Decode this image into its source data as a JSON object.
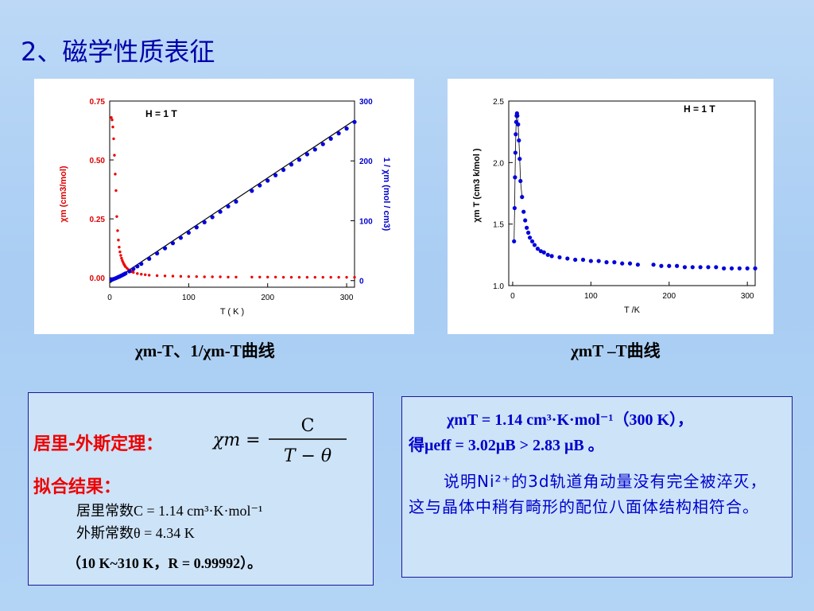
{
  "page": {
    "title": "2、磁学性质表征"
  },
  "chart_data": [
    {
      "type": "scatter",
      "title": "",
      "annotation": "H = 1 T",
      "xlabel": "T ( K )",
      "x_ticks": [
        "0",
        "100",
        "200",
        "300"
      ],
      "xlim": [
        0,
        310
      ],
      "left_axis": {
        "label": "χm (cm3/mol)",
        "ticks": [
          "0.00",
          "0.25",
          "0.50",
          "0.75"
        ],
        "ylim": [
          -0.04,
          0.75
        ],
        "color": "#dd0000"
      },
      "right_axis": {
        "label": "1 / χm (mol / cm3)",
        "ticks": [
          "0",
          "100",
          "200",
          "300"
        ],
        "ylim": [
          -11,
          300
        ],
        "color": "#0000cc"
      },
      "series": [
        {
          "axis": "left",
          "color": "#ee0000",
          "x": [
            2,
            3,
            4,
            5,
            6,
            7,
            8,
            9,
            10,
            11,
            12,
            13,
            14,
            15,
            16,
            17,
            18,
            19,
            20,
            22,
            24,
            26,
            28,
            30,
            35,
            40,
            45,
            50,
            60,
            70,
            80,
            90,
            100,
            110,
            120,
            130,
            140,
            150,
            160,
            180,
            190,
            200,
            210,
            220,
            230,
            240,
            250,
            260,
            270,
            280,
            290,
            300,
            310
          ],
          "y": [
            0.68,
            0.67,
            0.64,
            0.59,
            0.52,
            0.44,
            0.37,
            0.26,
            0.2,
            0.16,
            0.13,
            0.11,
            0.095,
            0.083,
            0.073,
            0.065,
            0.058,
            0.052,
            0.047,
            0.04,
            0.034,
            0.03,
            0.026,
            0.023,
            0.018,
            0.015,
            0.013,
            0.011,
            0.009,
            0.008,
            0.007,
            0.006,
            0.005,
            0.005,
            0.004,
            0.004,
            0.004,
            0.003,
            0.003,
            0.003,
            0.003,
            0.003,
            0.003,
            0.002,
            0.002,
            0.002,
            0.002,
            0.002,
            0.002,
            0.002,
            0.002,
            0.002,
            0.002
          ]
        },
        {
          "axis": "right",
          "color": "#0000dd",
          "x": [
            2,
            4,
            6,
            8,
            10,
            12,
            14,
            16,
            18,
            20,
            25,
            30,
            35,
            40,
            50,
            60,
            70,
            80,
            90,
            100,
            110,
            120,
            130,
            140,
            150,
            160,
            180,
            190,
            200,
            210,
            220,
            230,
            240,
            250,
            260,
            270,
            280,
            290,
            300,
            310
          ],
          "y": [
            1.5,
            2.2,
            3.2,
            4.2,
            5.4,
            6.6,
            7.9,
            9.2,
            10.6,
            12,
            15.5,
            19.5,
            23.8,
            28,
            36.5,
            45.5,
            54,
            62.5,
            71.5,
            80,
            89,
            97.5,
            106,
            115,
            124,
            132,
            150,
            159,
            167,
            176,
            185,
            194,
            202,
            211,
            219,
            228,
            237,
            246,
            254,
            265
          ]
        }
      ],
      "fit_line": {
        "x": [
          0,
          310
        ],
        "y": [
          -3.8,
          268
        ]
      }
    },
    {
      "type": "scatter",
      "title": "",
      "annotation": "H = 1 T",
      "xlabel": "T /K",
      "x_ticks": [
        "0",
        "100",
        "200",
        "300"
      ],
      "xlim": [
        -5,
        310
      ],
      "ylabel": "χm T (cm3 k/mol )",
      "y_ticks": [
        "1.0",
        "1.5",
        "2.0",
        "2.5"
      ],
      "ylim": [
        1.0,
        2.5
      ],
      "series": [
        {
          "color": "#0000dd",
          "x": [
            1.8,
            2.5,
            3,
            3.5,
            4,
            4.5,
            5,
            5.5,
            6,
            7,
            8,
            9,
            10,
            12,
            14,
            16,
            18,
            20,
            22,
            25,
            28,
            32,
            36,
            40,
            45,
            50,
            60,
            70,
            80,
            90,
            100,
            110,
            120,
            130,
            140,
            150,
            160,
            180,
            190,
            200,
            210,
            220,
            230,
            240,
            250,
            260,
            270,
            280,
            290,
            300,
            310
          ],
          "y": [
            1.36,
            1.63,
            1.88,
            2.08,
            2.23,
            2.33,
            2.38,
            2.4,
            2.38,
            2.31,
            2.18,
            2.03,
            1.85,
            1.72,
            1.6,
            1.53,
            1.47,
            1.43,
            1.39,
            1.36,
            1.33,
            1.3,
            1.28,
            1.27,
            1.25,
            1.24,
            1.23,
            1.22,
            1.21,
            1.21,
            1.2,
            1.2,
            1.19,
            1.19,
            1.18,
            1.18,
            1.17,
            1.17,
            1.16,
            1.16,
            1.16,
            1.15,
            1.15,
            1.15,
            1.15,
            1.15,
            1.14,
            1.14,
            1.14,
            1.14,
            1.14
          ]
        }
      ],
      "connect_low_t": true
    }
  ],
  "captions": {
    "left": "χm-T、1/χm-T曲线",
    "right": "χmT –T曲线"
  },
  "left_box": {
    "law_label": "居里-外斯定理：",
    "formula_lhs": "χm =",
    "formula_num": "C",
    "formula_den": "T − θ",
    "fit_label": "拟合结果：",
    "curie_constant": "居里常数C = 1.14 cm³·K·mol⁻¹",
    "weiss_constant": "外斯常数θ = 4.34 K",
    "fit_range": "（10 K~310 K，R = 0.99992）。"
  },
  "right_box": {
    "line1": "χmT = 1.14 cm³·K·mol⁻¹（300 K），",
    "line2": "得μeff = 3.02μB > 2.83 μB 。",
    "paragraph": "说明Ni²⁺的3d轨道角动量没有完全被淬灭，这与晶体中稍有畸形的配位八面体结构相符合。"
  }
}
